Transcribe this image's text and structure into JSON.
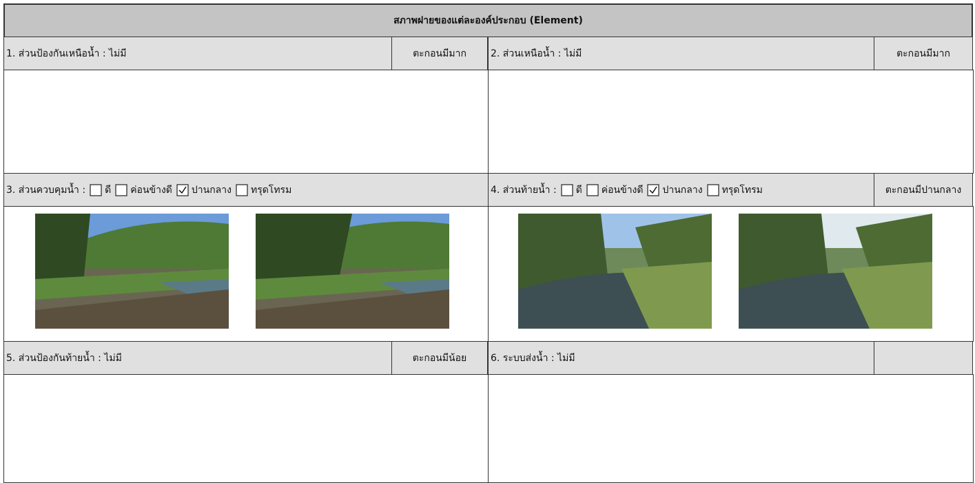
{
  "title": "สภาพฝายของแต่ละองค์ประกอบ (Element)",
  "sections": [
    {
      "label": "1. ส่วนป้องกันเหนือน้ำ : ไม่มี",
      "sediment": "ตะกอนมีมาก"
    },
    {
      "label": "2. ส่วนเหนือน้ำ : ไม่มี",
      "sediment": "ตะกอนมีมาก"
    },
    {
      "label": "3. ส่วนควบคุมน้ำ :",
      "options": [
        {
          "text": "ดี",
          "checked": false
        },
        {
          "text": "ค่อนข้างดี",
          "checked": false
        },
        {
          "text": "ปานกลาง",
          "checked": true
        },
        {
          "text": "ทรุดโทรม",
          "checked": false
        }
      ]
    },
    {
      "label": "4. ส่วนท้ายน้ำ :",
      "options": [
        {
          "text": "ดี",
          "checked": false
        },
        {
          "text": "ค่อนข้างดี",
          "checked": false
        },
        {
          "text": "ปานกลาง",
          "checked": true
        },
        {
          "text": "ทรุดโทรม",
          "checked": false
        }
      ],
      "sediment": "ตะกอนมีปานกลาง"
    },
    {
      "label": "5. ส่วนป้องกันท้ายน้ำ : ไม่มี",
      "sediment": "ตะกอนมีน้อย"
    },
    {
      "label": "6. ระบบส่งน้ำ : ไม่มี"
    }
  ]
}
